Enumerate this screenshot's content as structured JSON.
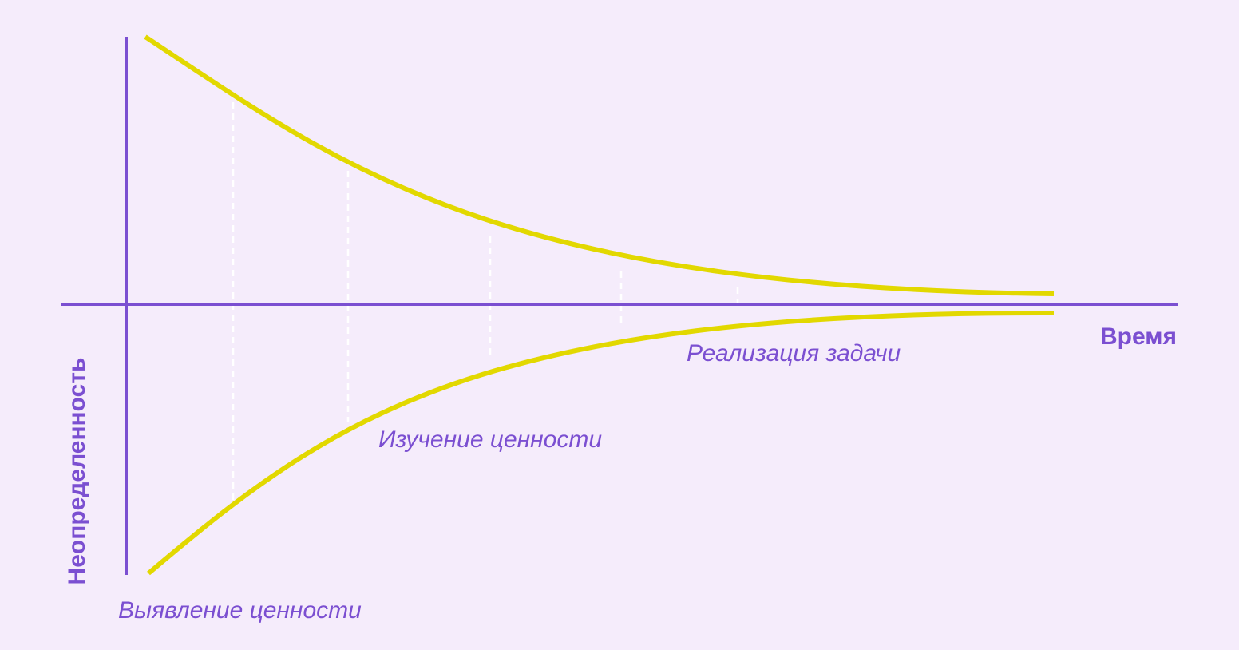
{
  "colors": {
    "background": "#f5ecfb",
    "axis": "#7b4fd1",
    "curve": "#e2d800",
    "marker": "#ffffff",
    "label": "#7b4fd1"
  },
  "axes": {
    "x_label": "Время",
    "y_label": "Неопределенность"
  },
  "phases": [
    {
      "label": "Выявление ценности"
    },
    {
      "label": "Изучение ценности"
    },
    {
      "label": "Реализация задачи"
    }
  ]
}
